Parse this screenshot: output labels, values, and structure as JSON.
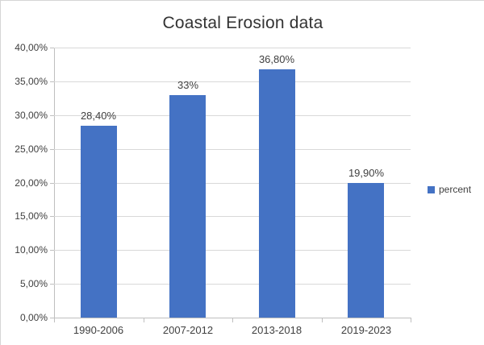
{
  "chart_data": {
    "type": "bar",
    "title": "Coastal Erosion data",
    "categories": [
      "1990-2006",
      "2007-2012",
      "2013-2018",
      "2019-2023"
    ],
    "series": [
      {
        "name": "percent",
        "values": [
          28.4,
          33,
          36.8,
          19.9
        ]
      }
    ],
    "value_labels": [
      "28,40%",
      "33%",
      "36,80%",
      "19,90%"
    ],
    "y_axis": {
      "min": 0,
      "max": 40,
      "step": 5,
      "tick_labels": [
        "0,00%",
        "5,00%",
        "10,00%",
        "15,00%",
        "20,00%",
        "25,00%",
        "30,00%",
        "35,00%",
        "40,00%"
      ]
    },
    "ylim": [
      0,
      40
    ],
    "grid": true,
    "bar_color": "#4472C4",
    "axis_color": "#BFBFBF",
    "gridline_color": "#D9D9D9",
    "text_color": "#404040",
    "legend": {
      "position": "right",
      "entries": [
        {
          "label": "percent",
          "color": "#4472C4"
        }
      ]
    }
  }
}
